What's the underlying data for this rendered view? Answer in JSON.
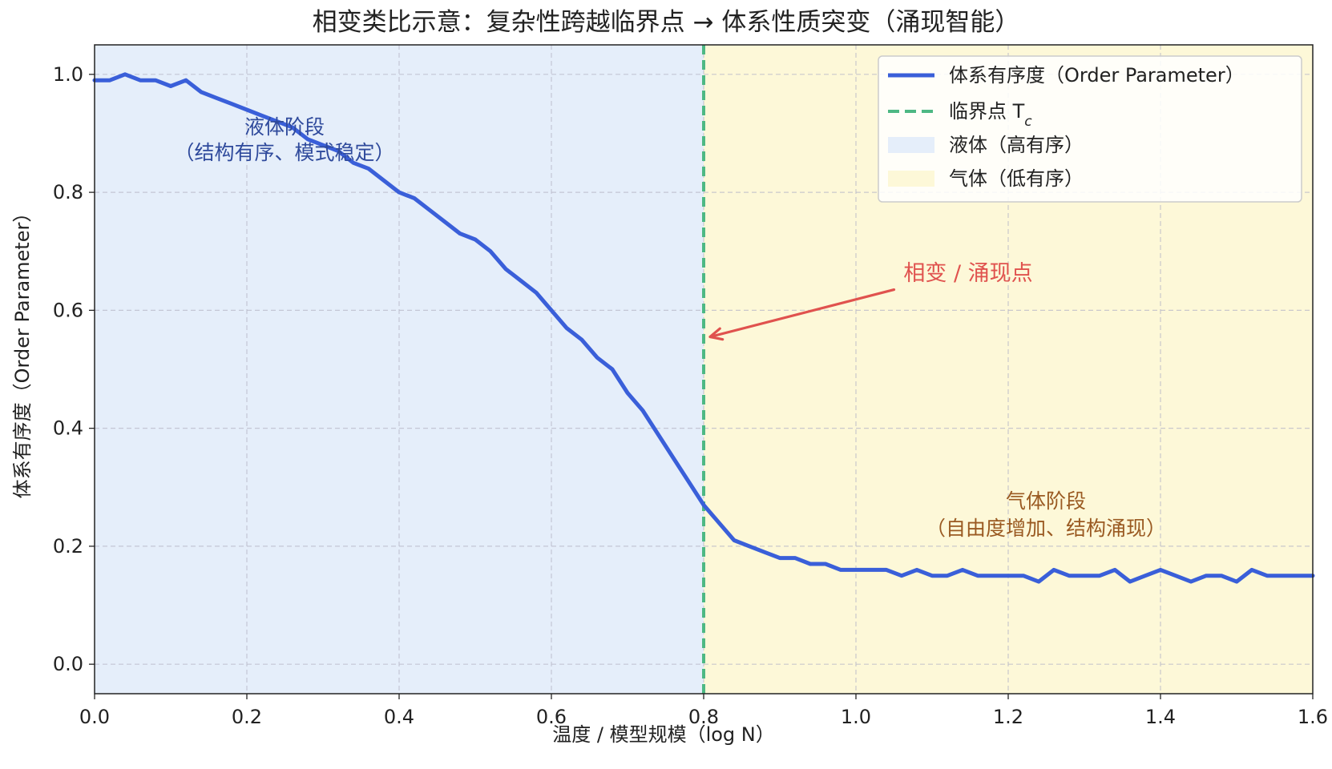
{
  "chart_data": {
    "type": "line",
    "title": "相变类比示意：复杂性跨越临界点 → 体系性质突变（涌现智能）",
    "xlabel": "温度 / 模型规模（log N）",
    "ylabel": "体系有序度（Order Parameter）",
    "xlim": [
      0.0,
      1.6
    ],
    "ylim": [
      -0.05,
      1.05
    ],
    "xticks": [
      "0.0",
      "0.2",
      "0.4",
      "0.6",
      "0.8",
      "1.0",
      "1.2",
      "1.4",
      "1.6"
    ],
    "yticks": [
      "0.0",
      "0.2",
      "0.4",
      "0.6",
      "0.8",
      "1.0"
    ],
    "grid": true,
    "legend_position": "top-right",
    "critical_point": 0.8,
    "regions": [
      {
        "name": "液体（高有序）",
        "x_range": [
          0.0,
          0.8
        ],
        "color": "#e5eefa"
      },
      {
        "name": "气体（低有序）",
        "x_range": [
          0.8,
          1.6
        ],
        "color": "#fdf8d8"
      }
    ],
    "series": [
      {
        "name": "体系有序度（Order Parameter）",
        "color": "#3a5fd9",
        "x": [
          0.0,
          0.02,
          0.04,
          0.06,
          0.08,
          0.1,
          0.12,
          0.14,
          0.16,
          0.18,
          0.2,
          0.22,
          0.24,
          0.26,
          0.28,
          0.3,
          0.32,
          0.34,
          0.36,
          0.38,
          0.4,
          0.42,
          0.44,
          0.46,
          0.48,
          0.5,
          0.52,
          0.54,
          0.56,
          0.58,
          0.6,
          0.62,
          0.64,
          0.66,
          0.68,
          0.7,
          0.72,
          0.74,
          0.76,
          0.78,
          0.8,
          0.82,
          0.84,
          0.86,
          0.88,
          0.9,
          0.92,
          0.94,
          0.96,
          0.98,
          1.0,
          1.02,
          1.04,
          1.06,
          1.08,
          1.1,
          1.12,
          1.14,
          1.16,
          1.18,
          1.2,
          1.22,
          1.24,
          1.26,
          1.28,
          1.3,
          1.32,
          1.34,
          1.36,
          1.38,
          1.4,
          1.42,
          1.44,
          1.46,
          1.48,
          1.5,
          1.52,
          1.54,
          1.56,
          1.58,
          1.6
        ],
        "y": [
          0.99,
          0.99,
          1.0,
          0.99,
          0.99,
          0.98,
          0.99,
          0.97,
          0.96,
          0.95,
          0.94,
          0.93,
          0.92,
          0.91,
          0.89,
          0.88,
          0.87,
          0.85,
          0.84,
          0.82,
          0.8,
          0.79,
          0.77,
          0.75,
          0.73,
          0.72,
          0.7,
          0.67,
          0.65,
          0.63,
          0.6,
          0.57,
          0.55,
          0.52,
          0.5,
          0.46,
          0.43,
          0.39,
          0.35,
          0.31,
          0.27,
          0.24,
          0.21,
          0.2,
          0.19,
          0.18,
          0.18,
          0.17,
          0.17,
          0.16,
          0.16,
          0.16,
          0.16,
          0.15,
          0.16,
          0.15,
          0.15,
          0.16,
          0.15,
          0.15,
          0.15,
          0.15,
          0.14,
          0.16,
          0.15,
          0.15,
          0.15,
          0.16,
          0.14,
          0.15,
          0.16,
          0.15,
          0.14,
          0.15,
          0.15,
          0.14,
          0.16,
          0.15,
          0.15,
          0.15,
          0.15
        ]
      }
    ],
    "legend": [
      {
        "label": "体系有序度（Order Parameter）",
        "kind": "line",
        "color": "#3a5fd9"
      },
      {
        "label": "临界点 T",
        "subscript": "c",
        "kind": "dashed",
        "color": "#4db884"
      },
      {
        "label": "液体（高有序）",
        "kind": "patch",
        "color": "#e5eefa"
      },
      {
        "label": "气体（低有序）",
        "kind": "patch",
        "color": "#fdf8d8"
      }
    ],
    "annotations": {
      "liquid_line1": "液体阶段",
      "liquid_line2": "（结构有序、模式稳定）",
      "gas_line1": "气体阶段",
      "gas_line2": "（自由度增加、结构涌现）",
      "arrow_label": "相变 / 涌现点",
      "arrow_target": {
        "x": 0.8,
        "y": 0.555
      },
      "arrow_origin": {
        "x": 1.05,
        "y": 0.635
      }
    },
    "colors": {
      "line": "#3a5fd9",
      "critical": "#4db884",
      "arrow": "#e0524e",
      "liquid_text": "#2f4a9c",
      "gas_text": "#9a5a22"
    }
  }
}
